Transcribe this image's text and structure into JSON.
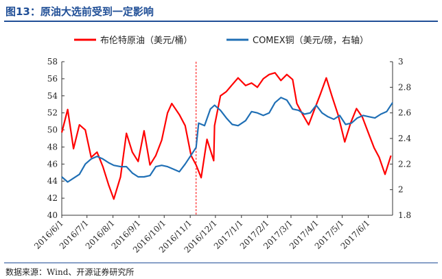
{
  "header": {
    "title": "图13：原油大选前受到一定影响"
  },
  "footer": {
    "source": "数据来源：Wind、开源证券研究所"
  },
  "chart_data": {
    "type": "line",
    "x_tick_labels": [
      "2016/6/1",
      "2016/7/1",
      "2016/8/1",
      "2016/9/1",
      "2016/10/1",
      "2016/11/1",
      "2016/12/1",
      "2017/1/1",
      "2017/2/1",
      "2017/3/1",
      "2017/4/1",
      "2017/5/1",
      "2017/6/1"
    ],
    "x_range": [
      "2016/6/1",
      "2017/6/30"
    ],
    "y_left": {
      "ticks": [
        40,
        42,
        44,
        46,
        48,
        50,
        52,
        54,
        56,
        58
      ],
      "range": [
        40,
        58
      ]
    },
    "y_right": {
      "ticks": [
        "1.8",
        "2",
        "2.2",
        "2.4",
        "2.6",
        "2.8",
        "3"
      ],
      "range": [
        1.8,
        3.0
      ]
    },
    "event_marker": {
      "date": "2016/11/8",
      "style": "dashed",
      "color": "#ff0000"
    },
    "series": [
      {
        "name": "布伦特原油（美元/桶）",
        "axis": "left",
        "color": "#ff0000",
        "x": [
          "2016/6/1",
          "2016/6/8",
          "2016/6/15",
          "2016/6/22",
          "2016/6/29",
          "2016/7/6",
          "2016/7/13",
          "2016/7/20",
          "2016/7/27",
          "2016/8/2",
          "2016/8/10",
          "2016/8/17",
          "2016/8/24",
          "2016/8/31",
          "2016/9/7",
          "2016/9/14",
          "2016/9/21",
          "2016/9/28",
          "2016/10/5",
          "2016/10/10",
          "2016/10/19",
          "2016/10/26",
          "2016/11/2",
          "2016/11/8",
          "2016/11/14",
          "2016/11/21",
          "2016/11/29",
          "2016/11/30",
          "2016/12/7",
          "2016/12/14",
          "2016/12/21",
          "2016/12/28",
          "2017/1/6",
          "2017/1/13",
          "2017/1/20",
          "2017/1/27",
          "2017/2/3",
          "2017/2/10",
          "2017/2/17",
          "2017/2/24",
          "2017/3/3",
          "2017/3/8",
          "2017/3/15",
          "2017/3/22",
          "2017/3/29",
          "2017/4/5",
          "2017/4/12",
          "2017/4/19",
          "2017/4/26",
          "2017/5/4",
          "2017/5/11",
          "2017/5/18",
          "2017/5/25",
          "2017/6/1",
          "2017/6/8",
          "2017/6/14",
          "2017/6/21",
          "2017/6/28"
        ],
        "values": [
          49.7,
          52.4,
          47.8,
          50.6,
          50.0,
          46.8,
          47.4,
          45.7,
          43.5,
          41.9,
          44.5,
          49.6,
          47.4,
          46.3,
          49.9,
          45.9,
          47.0,
          48.8,
          52.0,
          53.1,
          51.8,
          50.5,
          47.0,
          45.9,
          44.4,
          48.9,
          46.4,
          50.5,
          54.0,
          54.5,
          55.3,
          56.1,
          55.2,
          55.5,
          55.0,
          56.0,
          56.5,
          56.7,
          55.8,
          56.5,
          55.9,
          53.1,
          51.8,
          50.6,
          52.4,
          54.2,
          56.1,
          53.9,
          51.8,
          48.6,
          50.8,
          52.5,
          51.5,
          49.7,
          47.9,
          46.8,
          44.8,
          47.0
        ]
      },
      {
        "name": "COMEX铜（美元/磅，右轴）",
        "axis": "right",
        "color": "#1f6fb5",
        "x": [
          "2016/6/1",
          "2016/6/8",
          "2016/6/15",
          "2016/6/22",
          "2016/6/29",
          "2016/7/6",
          "2016/7/13",
          "2016/7/20",
          "2016/7/27",
          "2016/8/2",
          "2016/8/10",
          "2016/8/17",
          "2016/8/24",
          "2016/8/31",
          "2016/9/7",
          "2016/9/14",
          "2016/9/21",
          "2016/9/28",
          "2016/10/5",
          "2016/10/12",
          "2016/10/19",
          "2016/10/26",
          "2016/11/2",
          "2016/11/8",
          "2016/11/11",
          "2016/11/18",
          "2016/11/25",
          "2016/11/30",
          "2016/12/7",
          "2016/12/14",
          "2016/12/21",
          "2016/12/28",
          "2017/1/6",
          "2017/1/13",
          "2017/1/20",
          "2017/1/27",
          "2017/2/3",
          "2017/2/10",
          "2017/2/17",
          "2017/2/24",
          "2017/3/3",
          "2017/3/10",
          "2017/3/17",
          "2017/3/24",
          "2017/3/31",
          "2017/4/7",
          "2017/4/14",
          "2017/4/21",
          "2017/4/28",
          "2017/5/5",
          "2017/5/12",
          "2017/5/19",
          "2017/5/26",
          "2017/6/2",
          "2017/6/9",
          "2017/6/16",
          "2017/6/23",
          "2017/6/30"
        ],
        "values": [
          2.1,
          2.06,
          2.09,
          2.12,
          2.2,
          2.24,
          2.26,
          2.24,
          2.21,
          2.19,
          2.18,
          2.18,
          2.13,
          2.1,
          2.1,
          2.11,
          2.18,
          2.19,
          2.18,
          2.16,
          2.14,
          2.2,
          2.27,
          2.33,
          2.52,
          2.5,
          2.63,
          2.66,
          2.62,
          2.56,
          2.51,
          2.5,
          2.54,
          2.61,
          2.6,
          2.58,
          2.6,
          2.68,
          2.72,
          2.7,
          2.63,
          2.62,
          2.59,
          2.6,
          2.66,
          2.6,
          2.57,
          2.55,
          2.58,
          2.51,
          2.52,
          2.56,
          2.58,
          2.57,
          2.56,
          2.59,
          2.61,
          2.68
        ]
      }
    ],
    "legend": {
      "placement": "top-center"
    },
    "grid": false
  }
}
